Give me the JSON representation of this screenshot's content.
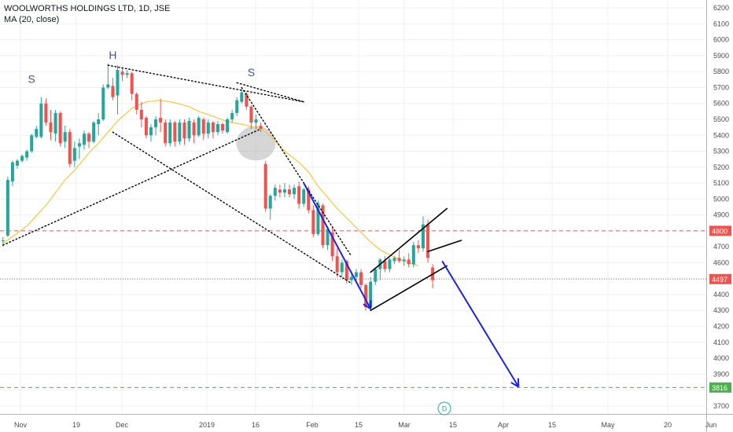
{
  "legend": {
    "title": "WOOLWORTHS HOLDINGS LTD, 1D, JSE",
    "indicator": "MA (20, close)"
  },
  "colors": {
    "up": "#26a69a",
    "down": "#ef5350",
    "ma": "#f5c542",
    "resistance": "#ef5350",
    "target": "#4caf50",
    "arrow": "#1a22e6",
    "grid": "#eef0f3"
  },
  "markers": {
    "event": "D"
  },
  "chart_data": {
    "type": "candlestick",
    "title": "WOOLWORTHS HOLDINGS LTD, 1D, JSE",
    "ylim": [
      3650,
      6230
    ],
    "y_ticks": [
      3700,
      3800,
      3900,
      4000,
      4100,
      4200,
      4300,
      4400,
      4500,
      4600,
      4700,
      4800,
      4900,
      5000,
      5100,
      5200,
      5300,
      5400,
      5500,
      5600,
      5700,
      5800,
      5900,
      6000,
      6100,
      6200
    ],
    "x_ticks": [
      "Nov",
      "19",
      "Dec",
      "2019",
      "16",
      "Feb",
      "15",
      "Mar",
      "15",
      "Apr",
      "15",
      "May",
      "20",
      "Jun"
    ],
    "price_labels": [
      {
        "value": 4800,
        "label": "4800",
        "color": "#ef5350"
      },
      {
        "value": 4497,
        "label": "4497",
        "color": "#ef5350"
      },
      {
        "value": 3816,
        "label": "3816",
        "color": "#4caf50"
      }
    ],
    "horizontal_lines": [
      {
        "value": 4800,
        "style": "dashed",
        "color": "#ef5350"
      },
      {
        "value": 4497,
        "style": "dotted",
        "color": "#ef5350"
      },
      {
        "value": 3816,
        "style": "dashed",
        "color": "#4caf50"
      }
    ],
    "pattern_labels": [
      {
        "text": "S",
        "bar": 6,
        "price": 5730
      },
      {
        "text": "H",
        "bar": 23,
        "price": 5880
      },
      {
        "text": "S",
        "bar": 52,
        "price": 5770
      }
    ],
    "candles": [
      [
        4740,
        4760,
        4700,
        4740
      ],
      [
        4770,
        5140,
        4760,
        5120
      ],
      [
        5110,
        5240,
        5080,
        5230
      ],
      [
        5210,
        5250,
        5190,
        5240
      ],
      [
        5240,
        5280,
        5230,
        5270
      ],
      [
        5260,
        5310,
        5240,
        5300
      ],
      [
        5300,
        5410,
        5290,
        5400
      ],
      [
        5390,
        5460,
        5380,
        5440
      ],
      [
        5390,
        5640,
        5380,
        5600
      ],
      [
        5600,
        5630,
        5460,
        5480
      ],
      [
        5480,
        5560,
        5370,
        5420
      ],
      [
        5410,
        5560,
        5360,
        5540
      ],
      [
        5540,
        5550,
        5330,
        5350
      ],
      [
        5360,
        5460,
        5320,
        5420
      ],
      [
        5420,
        5440,
        5200,
        5220
      ],
      [
        5240,
        5360,
        5200,
        5320
      ],
      [
        5330,
        5380,
        5250,
        5350
      ],
      [
        5340,
        5430,
        5310,
        5410
      ],
      [
        5410,
        5420,
        5320,
        5360
      ],
      [
        5360,
        5490,
        5350,
        5480
      ],
      [
        5470,
        5540,
        5400,
        5500
      ],
      [
        5500,
        5720,
        5490,
        5700
      ],
      [
        5700,
        5850,
        5690,
        5720
      ],
      [
        5710,
        5760,
        5620,
        5640
      ],
      [
        5650,
        5840,
        5530,
        5810
      ],
      [
        5800,
        5820,
        5740,
        5780
      ],
      [
        5780,
        5810,
        5760,
        5790
      ],
      [
        5790,
        5800,
        5620,
        5660
      ],
      [
        5660,
        5670,
        5530,
        5560
      ],
      [
        5560,
        5610,
        5450,
        5500
      ],
      [
        5510,
        5520,
        5380,
        5400
      ],
      [
        5400,
        5470,
        5360,
        5450
      ],
      [
        5450,
        5520,
        5400,
        5500
      ],
      [
        5510,
        5630,
        5420,
        5480
      ],
      [
        5480,
        5500,
        5330,
        5350
      ],
      [
        5350,
        5500,
        5330,
        5480
      ],
      [
        5480,
        5490,
        5330,
        5360
      ],
      [
        5360,
        5500,
        5340,
        5480
      ],
      [
        5480,
        5500,
        5340,
        5380
      ],
      [
        5380,
        5510,
        5360,
        5490
      ],
      [
        5480,
        5500,
        5350,
        5400
      ],
      [
        5400,
        5520,
        5390,
        5510
      ],
      [
        5500,
        5510,
        5370,
        5410
      ],
      [
        5410,
        5500,
        5380,
        5480
      ],
      [
        5480,
        5490,
        5380,
        5420
      ],
      [
        5420,
        5490,
        5400,
        5470
      ],
      [
        5470,
        5480,
        5410,
        5430
      ],
      [
        5420,
        5510,
        5410,
        5500
      ],
      [
        5500,
        5560,
        5480,
        5540
      ],
      [
        5540,
        5640,
        5520,
        5620
      ],
      [
        5610,
        5690,
        5600,
        5670
      ],
      [
        5660,
        5670,
        5560,
        5580
      ],
      [
        5580,
        5590,
        5440,
        5480
      ],
      [
        5480,
        5530,
        5440,
        5500
      ],
      [
        5460,
        5480,
        5420,
        5440
      ],
      [
        5220,
        5240,
        4920,
        4940
      ],
      [
        4940,
        5030,
        4870,
        5020
      ],
      [
        5020,
        5090,
        4990,
        5070
      ],
      [
        5060,
        5090,
        5010,
        5040
      ],
      [
        5040,
        5100,
        5010,
        5060
      ],
      [
        5060,
        5090,
        5010,
        5030
      ],
      [
        5030,
        5090,
        5000,
        5070
      ],
      [
        5080,
        5110,
        4940,
        4970
      ],
      [
        4970,
        5070,
        4950,
        5060
      ],
      [
        5060,
        5080,
        4910,
        4930
      ],
      [
        4930,
        4960,
        4760,
        4780
      ],
      [
        4780,
        4990,
        4770,
        4970
      ],
      [
        4960,
        4970,
        4690,
        4710
      ],
      [
        4710,
        4830,
        4680,
        4810
      ],
      [
        4790,
        4820,
        4610,
        4640
      ],
      [
        4640,
        4690,
        4510,
        4540
      ],
      [
        4540,
        4620,
        4510,
        4600
      ],
      [
        4610,
        4620,
        4470,
        4490
      ],
      [
        4490,
        4530,
        4460,
        4510
      ],
      [
        4510,
        4560,
        4480,
        4540
      ],
      [
        4540,
        4560,
        4440,
        4460
      ],
      [
        4460,
        4470,
        4300,
        4320
      ],
      [
        4320,
        4510,
        4300,
        4480
      ],
      [
        4480,
        4570,
        4460,
        4560
      ],
      [
        4560,
        4630,
        4490,
        4620
      ],
      [
        4610,
        4640,
        4540,
        4560
      ],
      [
        4560,
        4630,
        4540,
        4620
      ],
      [
        4610,
        4640,
        4590,
        4630
      ],
      [
        4630,
        4680,
        4600,
        4610
      ],
      [
        4610,
        4640,
        4580,
        4620
      ],
      [
        4620,
        4660,
        4570,
        4590
      ],
      [
        4590,
        4730,
        4570,
        4710
      ],
      [
        4710,
        4740,
        4660,
        4690
      ],
      [
        4690,
        4890,
        4670,
        4840
      ],
      [
        4840,
        4870,
        4600,
        4630
      ],
      [
        4570,
        4590,
        4440,
        4490
      ]
    ],
    "ma_20": [
      [
        0,
        4720
      ],
      [
        5,
        4830
      ],
      [
        9,
        4960
      ],
      [
        13,
        5120
      ],
      [
        15,
        5180
      ],
      [
        18,
        5290
      ],
      [
        20,
        5350
      ],
      [
        24,
        5490
      ],
      [
        27,
        5570
      ],
      [
        30,
        5610
      ],
      [
        33,
        5620
      ],
      [
        36,
        5605
      ],
      [
        39,
        5580
      ],
      [
        41,
        5550
      ],
      [
        44,
        5520
      ],
      [
        47,
        5485
      ],
      [
        50,
        5470
      ],
      [
        52,
        5455
      ],
      [
        54,
        5440
      ],
      [
        56,
        5400
      ],
      [
        59,
        5300
      ],
      [
        62,
        5230
      ],
      [
        64,
        5170
      ],
      [
        66,
        5080
      ],
      [
        68,
        5010
      ],
      [
        70,
        4940
      ],
      [
        73,
        4850
      ],
      [
        75,
        4790
      ],
      [
        77,
        4730
      ],
      [
        79,
        4680
      ],
      [
        81,
        4650
      ],
      [
        83,
        4620
      ],
      [
        85,
        4600
      ],
      [
        87,
        4580
      ]
    ],
    "trend_lines": [
      {
        "p1": [
          0,
          4710
        ],
        "p2": [
          54,
          5440
        ],
        "style": "dotted",
        "color": "#000000"
      },
      {
        "p1": [
          22,
          5840
        ],
        "p2": [
          63,
          5610
        ],
        "style": "dotted",
        "color": "#000000"
      },
      {
        "p1": [
          49,
          5730
        ],
        "p2": [
          63,
          5610
        ],
        "style": "dotted",
        "color": "#000000"
      },
      {
        "p1": [
          23,
          5420
        ],
        "p2": [
          73,
          4470
        ],
        "style": "dotted",
        "color": "#000000"
      },
      {
        "p1": [
          50,
          5700
        ],
        "p2": [
          73,
          4640
        ],
        "style": "dotted",
        "color": "#000000"
      },
      {
        "p1": [
          77,
          4300
        ],
        "p2": [
          93,
          4580
        ],
        "style": "solid",
        "color": "#000000"
      },
      {
        "p1": [
          77,
          4540
        ],
        "p2": [
          93,
          4940
        ],
        "style": "solid",
        "color": "#000000"
      },
      {
        "p1": [
          89,
          4670
        ],
        "p2": [
          96,
          4740
        ],
        "style": "solid",
        "color": "#000000"
      }
    ],
    "arrows": [
      {
        "p1": [
          63,
          5100
        ],
        "p2": [
          77,
          4310
        ],
        "color": "#1a22e6"
      },
      {
        "p1": [
          92,
          4610
        ],
        "p2": [
          108,
          3820
        ],
        "color": "#1a22e6"
      }
    ],
    "highlight": {
      "shape": "ellipse",
      "bar": 53,
      "price": 5350,
      "color": "#9e9e9e"
    }
  }
}
